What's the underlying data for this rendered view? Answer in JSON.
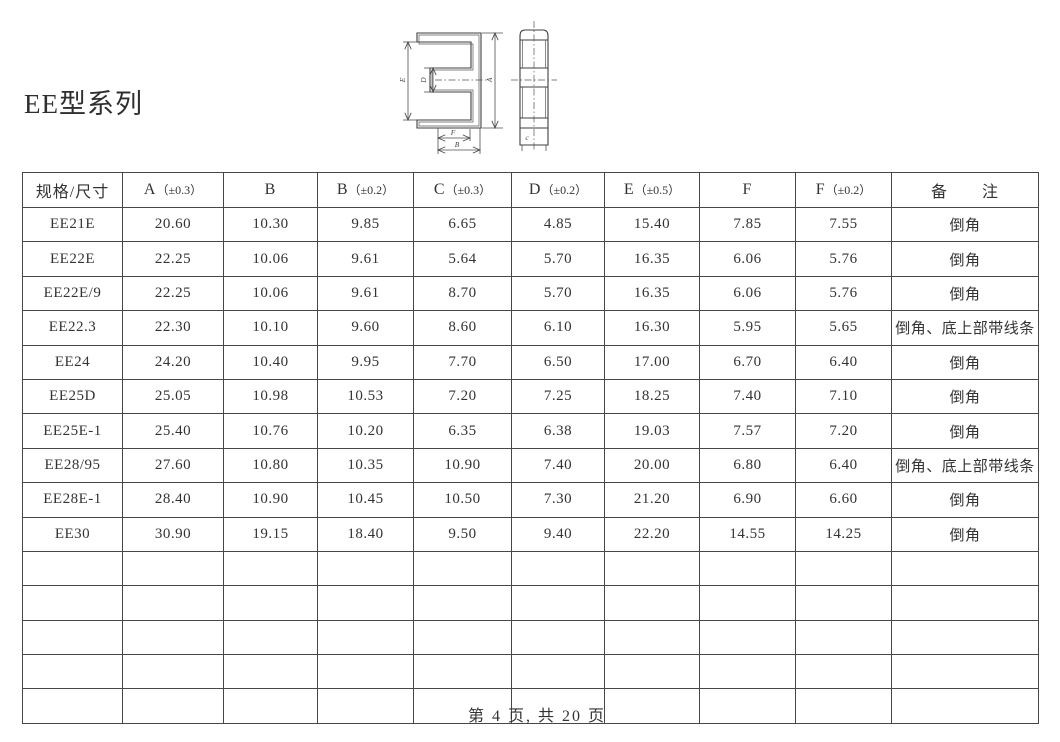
{
  "page": {
    "title": "EE型系列",
    "footer": "第 4 页, 共 20 页"
  },
  "drawing": {
    "labels": {
      "a": "A",
      "b": "B",
      "c": "c",
      "d": "D",
      "e": "E",
      "f": "F"
    }
  },
  "table": {
    "columns": [
      {
        "label": "规格/尺寸",
        "tol": ""
      },
      {
        "label": "A",
        "tol": "（±0.3）"
      },
      {
        "label": "B",
        "tol": ""
      },
      {
        "label": "B",
        "tol": "（±0.2）"
      },
      {
        "label": "C",
        "tol": "（±0.3）"
      },
      {
        "label": "D",
        "tol": "（±0.2）"
      },
      {
        "label": "E",
        "tol": "（±0.5）"
      },
      {
        "label": "F",
        "tol": ""
      },
      {
        "label": "F",
        "tol": "（±0.2）"
      },
      {
        "label": "备　　注",
        "tol": ""
      }
    ],
    "rows": [
      [
        "EE21E",
        "20.60",
        "10.30",
        "9.85",
        "6.65",
        "4.85",
        "15.40",
        "7.85",
        "7.55",
        "倒角"
      ],
      [
        "EE22E",
        "22.25",
        "10.06",
        "9.61",
        "5.64",
        "5.70",
        "16.35",
        "6.06",
        "5.76",
        "倒角"
      ],
      [
        "EE22E/9",
        "22.25",
        "10.06",
        "9.61",
        "8.70",
        "5.70",
        "16.35",
        "6.06",
        "5.76",
        "倒角"
      ],
      [
        "EE22.3",
        "22.30",
        "10.10",
        "9.60",
        "8.60",
        "6.10",
        "16.30",
        "5.95",
        "5.65",
        "倒角、底上部带线条"
      ],
      [
        "EE24",
        "24.20",
        "10.40",
        "9.95",
        "7.70",
        "6.50",
        "17.00",
        "6.70",
        "6.40",
        "倒角"
      ],
      [
        "EE25D",
        "25.05",
        "10.98",
        "10.53",
        "7.20",
        "7.25",
        "18.25",
        "7.40",
        "7.10",
        "倒角"
      ],
      [
        "EE25E-1",
        "25.40",
        "10.76",
        "10.20",
        "6.35",
        "6.38",
        "19.03",
        "7.57",
        "7.20",
        "倒角"
      ],
      [
        "EE28/95",
        "27.60",
        "10.80",
        "10.35",
        "10.90",
        "7.40",
        "20.00",
        "6.80",
        "6.40",
        "倒角、底上部带线条"
      ],
      [
        "EE28E-1",
        "28.40",
        "10.90",
        "10.45",
        "10.50",
        "7.30",
        "21.20",
        "6.90",
        "6.60",
        "倒角"
      ],
      [
        "EE30",
        "30.90",
        "19.15",
        "18.40",
        "9.50",
        "9.40",
        "22.20",
        "14.55",
        "14.25",
        "倒角"
      ]
    ],
    "empty_row_count": 5
  }
}
